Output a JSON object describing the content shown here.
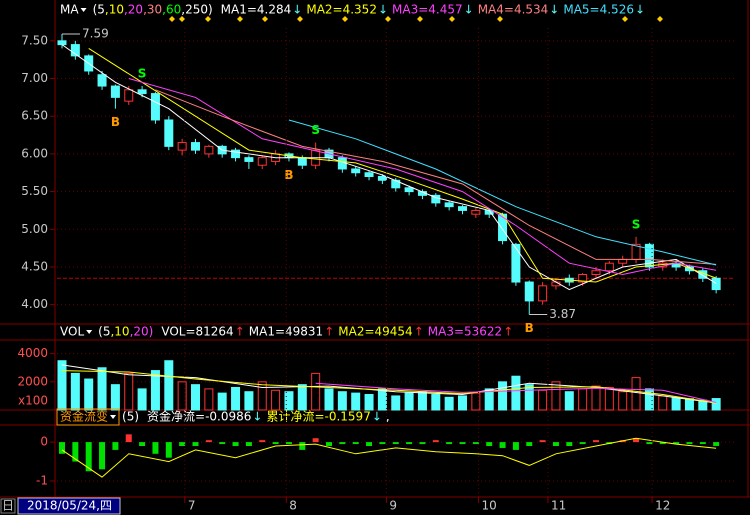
{
  "chart_data": [
    {
      "type": "candlestick",
      "indicator": "MA",
      "params": [
        {
          "text": "(5",
          "color": "#ffffff"
        },
        {
          "text": ",10",
          "color": "#ffff00"
        },
        {
          "text": ",20",
          "color": "#ff40ff"
        },
        {
          "text": ",30",
          "color": "#ff8080"
        },
        {
          "text": ",60",
          "color": "#00ff00"
        },
        {
          "text": ",250)",
          "color": "#ffffff"
        }
      ],
      "open": [
        7.5,
        7.45,
        7.3,
        7.05,
        6.9,
        6.7,
        6.85,
        6.8,
        6.45,
        6.05,
        6.15,
        6.0,
        6.1,
        6.05,
        5.95,
        5.85,
        5.9,
        6.0,
        5.95,
        5.85,
        6.05,
        5.95,
        5.8,
        5.75,
        5.7,
        5.65,
        5.55,
        5.5,
        5.45,
        5.35,
        5.3,
        5.2,
        5.25,
        5.2,
        4.8,
        4.3,
        4.05,
        4.25,
        4.35,
        4.3,
        4.4,
        4.45,
        4.55,
        4.6,
        4.8,
        4.5,
        4.55,
        4.5,
        4.45,
        4.35
      ],
      "high": [
        7.59,
        7.5,
        7.32,
        7.1,
        6.92,
        6.9,
        6.9,
        6.82,
        6.5,
        6.2,
        6.2,
        6.12,
        6.12,
        6.08,
        5.98,
        5.98,
        6.05,
        6.02,
        5.98,
        6.15,
        6.08,
        5.98,
        5.83,
        5.78,
        5.73,
        5.68,
        5.58,
        5.53,
        5.48,
        5.38,
        5.32,
        5.28,
        5.28,
        5.22,
        4.82,
        4.32,
        4.3,
        4.35,
        4.4,
        4.42,
        4.5,
        4.58,
        4.65,
        4.9,
        4.82,
        4.6,
        4.6,
        4.53,
        4.48,
        4.38
      ],
      "low": [
        7.4,
        7.25,
        7.05,
        6.85,
        6.6,
        6.65,
        6.75,
        6.4,
        6.05,
        5.98,
        6.0,
        5.95,
        5.95,
        5.9,
        5.8,
        5.8,
        5.85,
        5.9,
        5.8,
        5.8,
        5.9,
        5.75,
        5.7,
        5.65,
        5.6,
        5.5,
        5.45,
        5.4,
        5.3,
        5.25,
        5.2,
        5.15,
        5.15,
        4.8,
        4.25,
        3.87,
        4.0,
        4.2,
        4.25,
        4.25,
        4.35,
        4.4,
        4.5,
        4.55,
        4.45,
        4.45,
        4.45,
        4.4,
        4.3,
        4.15
      ],
      "close": [
        7.45,
        7.3,
        7.1,
        6.9,
        6.75,
        6.85,
        6.8,
        6.45,
        6.1,
        6.15,
        6.05,
        6.1,
        6.0,
        5.95,
        5.9,
        5.95,
        6.0,
        5.95,
        5.85,
        6.05,
        5.95,
        5.8,
        5.75,
        5.7,
        5.65,
        5.55,
        5.5,
        5.45,
        5.35,
        5.3,
        5.25,
        5.25,
        5.2,
        4.85,
        4.3,
        4.05,
        4.25,
        4.3,
        4.3,
        4.4,
        4.45,
        4.55,
        4.6,
        4.8,
        4.5,
        4.55,
        4.5,
        4.45,
        4.35,
        4.2
      ],
      "up_color": "#ff3232",
      "down_color": "#54fcfc",
      "ylim": [
        3.77,
        7.67
      ],
      "yticks": [
        {
          "value": 7.5,
          "label": "7.50"
        },
        {
          "value": 7,
          "label": "7.00"
        },
        {
          "value": 6.5,
          "label": "6.50"
        },
        {
          "value": 6,
          "label": "6.00"
        },
        {
          "value": 5.5,
          "label": "5.50"
        },
        {
          "value": 5,
          "label": "5.00"
        },
        {
          "value": 4.5,
          "label": "4.50"
        },
        {
          "value": 4,
          "label": "4.00"
        }
      ],
      "ref_line": 4.35,
      "series": [
        {
          "name": "MA1=4.284",
          "trend": "↓",
          "trend_color": "#54fcfc",
          "color": "#ffffff",
          "x": [
            0,
            4,
            8,
            12,
            16,
            20,
            24,
            28,
            32,
            35,
            38,
            42,
            46,
            49
          ],
          "values": [
            7.45,
            6.95,
            6.6,
            6.05,
            5.95,
            5.95,
            5.72,
            5.42,
            5.25,
            4.5,
            4.2,
            4.5,
            4.6,
            4.284
          ]
        },
        {
          "name": "MA2=4.352",
          "trend": "↓",
          "trend_color": "#54fcfc",
          "color": "#ffff00",
          "x": [
            2,
            6,
            10,
            14,
            18,
            22,
            26,
            30,
            33,
            36,
            40,
            43,
            46,
            49
          ],
          "values": [
            7.4,
            6.95,
            6.5,
            6.05,
            5.95,
            5.88,
            5.65,
            5.4,
            5.2,
            4.35,
            4.3,
            4.5,
            4.55,
            4.352
          ]
        },
        {
          "name": "MA3=4.457",
          "trend": "↓",
          "trend_color": "#54fcfc",
          "color": "#ff40ff",
          "x": [
            5,
            10,
            15,
            20,
            25,
            30,
            34,
            38,
            42,
            46,
            49
          ],
          "values": [
            7.0,
            6.75,
            6.2,
            6.0,
            5.8,
            5.5,
            5.05,
            4.55,
            4.4,
            4.55,
            4.457
          ]
        },
        {
          "name": "MA4=4.534",
          "trend": "↓",
          "trend_color": "#54fcfc",
          "color": "#ff8080",
          "x": [
            7,
            12,
            18,
            24,
            30,
            35,
            40,
            44,
            49
          ],
          "values": [
            6.85,
            6.5,
            6.1,
            5.9,
            5.6,
            5.05,
            4.6,
            4.6,
            4.534
          ]
        },
        {
          "name": "MA5=4.526",
          "trend": "↓",
          "trend_color": "#54fcfc",
          "color": "#40e0ff",
          "x": [
            17,
            22,
            28,
            34,
            40,
            45,
            49
          ],
          "values": [
            6.45,
            6.2,
            5.8,
            5.3,
            4.9,
            4.7,
            4.526
          ]
        }
      ],
      "signals": [
        {
          "label": "B",
          "index": 4,
          "color": "#ff9900"
        },
        {
          "label": "S",
          "index": 6,
          "color": "#00ff00"
        },
        {
          "label": "B",
          "index": 17,
          "color": "#ff9900"
        },
        {
          "label": "S",
          "index": 19,
          "color": "#00ff00"
        },
        {
          "label": "B",
          "index": 35,
          "color": "#ff9900"
        },
        {
          "label": "S",
          "index": 43,
          "color": "#00ff00"
        }
      ]
    },
    {
      "type": "volume",
      "indicator": "VOL",
      "params": [
        {
          "text": "(5",
          "color": "#ffffff"
        },
        {
          "text": ",10",
          "color": "#ffff00"
        },
        {
          "text": ",20)",
          "color": "#ff40ff"
        }
      ],
      "name": "VOL=81264",
      "trend": "↑",
      "trend_color": "#ff3232",
      "values": [
        3500,
        2600,
        2200,
        3000,
        1800,
        2600,
        1500,
        2800,
        3500,
        2000,
        1800,
        1500,
        1200,
        1600,
        1300,
        2000,
        1400,
        1300,
        1800,
        2600,
        1500,
        1300,
        1200,
        1100,
        1500,
        1000,
        1200,
        1300,
        1100,
        900,
        1000,
        1200,
        1500,
        2000,
        2400,
        1800,
        1400,
        2000,
        1300,
        1500,
        1700,
        1600,
        1300,
        2300,
        1500,
        1000,
        900,
        800,
        700,
        812.64
      ],
      "ylim": [
        0,
        4830
      ],
      "yticks": [
        4000,
        2000
      ],
      "unit": "x100",
      "series": [
        {
          "name": "MA1=49831",
          "trend": "↑",
          "trend_color": "#ff3232",
          "color": "#ffffff",
          "x": [
            0,
            5,
            10,
            15,
            20,
            25,
            30,
            35,
            40,
            45,
            49
          ],
          "values": [
            3200,
            2500,
            2300,
            1600,
            1700,
            1300,
            1100,
            1900,
            1600,
            1000,
            498.31
          ]
        },
        {
          "name": "MA2=49454",
          "trend": "↑",
          "trend_color": "#ff3232",
          "color": "#ffff00",
          "x": [
            0,
            5,
            10,
            15,
            20,
            25,
            30,
            35,
            40,
            45,
            49
          ],
          "values": [
            2800,
            2700,
            2200,
            1800,
            1600,
            1400,
            1150,
            1600,
            1650,
            1100,
            494.54
          ]
        },
        {
          "name": "MA3=53622",
          "trend": "↑",
          "trend_color": "#ff3232",
          "color": "#ff40ff",
          "x": [
            19,
            25,
            30,
            35,
            40,
            45,
            49
          ],
          "values": [
            1900,
            1500,
            1250,
            1400,
            1550,
            1400,
            536.22
          ]
        }
      ]
    },
    {
      "type": "bar",
      "indicator": "资金流变",
      "params": [
        {
          "text": "(5)",
          "color": "#ffffff"
        }
      ],
      "name": "资金净流=-0.0986",
      "trend": "↓",
      "trend_color": "#54fcfc",
      "pos_color": "#ff3232",
      "neg_color": "#00e000",
      "values": [
        -0.3,
        -0.5,
        -0.75,
        -0.7,
        -0.2,
        0.2,
        -0.1,
        -0.3,
        -0.4,
        -0.1,
        -0.1,
        0.05,
        -0.05,
        -0.1,
        -0.1,
        0.05,
        -0.05,
        -0.05,
        -0.2,
        0.1,
        -0.1,
        -0.05,
        -0.05,
        -0.1,
        -0.05,
        -0.05,
        -0.05,
        -0.05,
        0.05,
        -0.05,
        -0.05,
        -0.05,
        -0.1,
        -0.15,
        -0.2,
        -0.1,
        0.05,
        -0.1,
        -0.1,
        -0.05,
        0.05,
        -0.05,
        0.05,
        0.1,
        -0.05,
        -0.05,
        -0.05,
        -0.05,
        -0.05,
        -0.0986
      ],
      "ylim": [
        -1.36,
        0.44
      ],
      "yticks": [
        0,
        -1
      ],
      "series": [
        {
          "name": "累计净流=-0.1597",
          "trend": "↓",
          "trend_color": "#54fcfc",
          "color": "#ffff00",
          "x": [
            0,
            3,
            5,
            8,
            10,
            13,
            16,
            19,
            22,
            25,
            28,
            31,
            33,
            35,
            37,
            40,
            43,
            46,
            49
          ],
          "values": [
            -0.2,
            -0.9,
            -0.3,
            -0.5,
            -0.2,
            -0.4,
            -0.1,
            -0.05,
            -0.3,
            -0.15,
            -0.25,
            -0.3,
            -0.35,
            -0.6,
            -0.3,
            -0.1,
            0.1,
            -0.05,
            -0.1597
          ]
        }
      ],
      "tail": ","
    }
  ],
  "date_bar": {
    "period": "日",
    "cursor": "2018/05/24,四",
    "months": [
      {
        "value": 9.2,
        "label": "7"
      },
      {
        "value": 16.8,
        "label": "8"
      },
      {
        "value": 24.3,
        "label": "9"
      },
      {
        "value": 31.2,
        "label": "10"
      },
      {
        "value": 36.4,
        "label": "11"
      },
      {
        "value": 44.2,
        "label": "12"
      }
    ]
  }
}
